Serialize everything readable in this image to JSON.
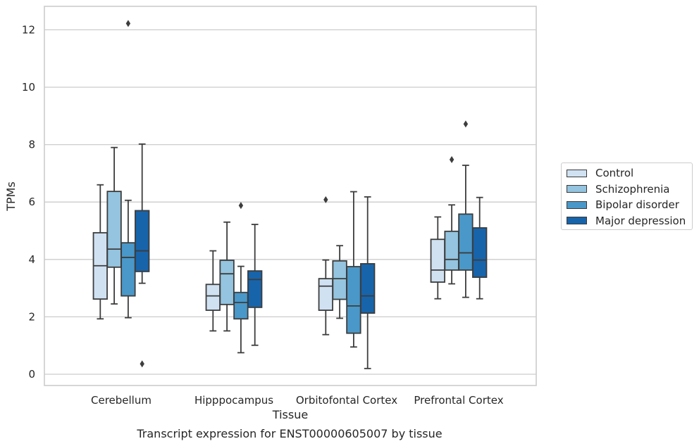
{
  "chart_data": {
    "type": "box",
    "title": "",
    "caption": "Transcript expression for ENST00000605007 by tissue",
    "xlabel": "Tissue",
    "ylabel": "TPMs",
    "ylim": [
      -0.35,
      12.8
    ],
    "yticks": [
      0,
      2,
      4,
      6,
      8,
      10,
      12
    ],
    "grid": "horizontal",
    "legend_position": "right",
    "categories": [
      "Cerebellum",
      "Hipppocampus",
      "Orbitofontal Cortex",
      "Prefrontal Cortex"
    ],
    "series": [
      {
        "name": "Control",
        "color": "#d0e1f2",
        "boxes": [
          {
            "whislo": 1.93,
            "q1": 2.62,
            "med": 3.78,
            "q3": 4.93,
            "whishi": 6.6,
            "fliers": []
          },
          {
            "whislo": 1.51,
            "q1": 2.23,
            "med": 2.73,
            "q3": 3.13,
            "whishi": 4.3,
            "fliers": []
          },
          {
            "whislo": 1.38,
            "q1": 2.23,
            "med": 3.07,
            "q3": 3.33,
            "whishi": 3.98,
            "fliers": [
              6.08
            ]
          },
          {
            "whislo": 2.63,
            "q1": 3.21,
            "med": 3.63,
            "q3": 4.7,
            "whishi": 5.48,
            "fliers": []
          }
        ]
      },
      {
        "name": "Schizophrenia",
        "color": "#94c4df",
        "boxes": [
          {
            "whislo": 2.45,
            "q1": 3.73,
            "med": 4.36,
            "q3": 6.37,
            "whishi": 7.9,
            "fliers": []
          },
          {
            "whislo": 1.51,
            "q1": 2.43,
            "med": 3.5,
            "q3": 3.97,
            "whishi": 5.3,
            "fliers": []
          },
          {
            "whislo": 1.95,
            "q1": 2.61,
            "med": 3.33,
            "q3": 3.95,
            "whishi": 4.48,
            "fliers": []
          },
          {
            "whislo": 3.15,
            "q1": 3.63,
            "med": 4.0,
            "q3": 4.98,
            "whishi": 5.9,
            "fliers": [
              7.48
            ]
          }
        ]
      },
      {
        "name": "Bipolar disorder",
        "color": "#4a98c9",
        "boxes": [
          {
            "whislo": 1.97,
            "q1": 2.73,
            "med": 4.07,
            "q3": 4.58,
            "whishi": 6.06,
            "fliers": [
              12.22
            ]
          },
          {
            "whislo": 0.75,
            "q1": 1.93,
            "med": 2.5,
            "q3": 2.85,
            "whishi": 3.76,
            "fliers": [
              5.88
            ]
          },
          {
            "whislo": 0.95,
            "q1": 1.43,
            "med": 2.38,
            "q3": 3.75,
            "whishi": 6.36,
            "fliers": []
          },
          {
            "whislo": 2.68,
            "q1": 3.63,
            "med": 4.23,
            "q3": 5.58,
            "whishi": 7.28,
            "fliers": [
              8.72
            ]
          }
        ]
      },
      {
        "name": "Major depression",
        "color": "#1764ab",
        "boxes": [
          {
            "whislo": 3.17,
            "q1": 3.58,
            "med": 4.3,
            "q3": 5.7,
            "whishi": 8.02,
            "fliers": [
              0.36
            ]
          },
          {
            "whislo": 1.01,
            "q1": 2.33,
            "med": 3.3,
            "q3": 3.6,
            "whishi": 5.22,
            "fliers": []
          },
          {
            "whislo": 0.2,
            "q1": 2.13,
            "med": 2.73,
            "q3": 3.85,
            "whishi": 6.18,
            "fliers": []
          },
          {
            "whislo": 2.63,
            "q1": 3.38,
            "med": 3.98,
            "q3": 5.1,
            "whishi": 6.16,
            "fliers": []
          }
        ]
      }
    ]
  }
}
